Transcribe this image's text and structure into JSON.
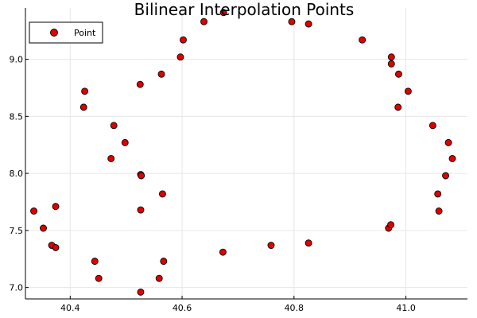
{
  "chart_data": {
    "type": "scatter",
    "title": "Bilinear Interpolation Points",
    "xlabel": "",
    "ylabel": "",
    "xlim": [
      40.32,
      41.11
    ],
    "ylim": [
      6.9,
      9.45
    ],
    "xticks": [
      40.4,
      40.6,
      40.8,
      41.0
    ],
    "xtick_labels": [
      "40.4",
      "40.6",
      "40.8",
      "41.0"
    ],
    "yticks": [
      7.0,
      7.5,
      8.0,
      8.5,
      9.0
    ],
    "ytick_labels": [
      "7.0",
      "7.5",
      "8.0",
      "8.5",
      "9.0"
    ],
    "grid": true,
    "legend": {
      "position": "top-left"
    },
    "series": [
      {
        "name": "Point",
        "color": "#e00000",
        "marker": "circle",
        "points": [
          [
            40.335,
            7.67
          ],
          [
            40.352,
            7.52
          ],
          [
            40.367,
            7.37
          ],
          [
            40.374,
            7.35
          ],
          [
            40.374,
            7.71
          ],
          [
            40.424,
            8.58
          ],
          [
            40.426,
            8.72
          ],
          [
            40.444,
            7.23
          ],
          [
            40.451,
            7.08
          ],
          [
            40.473,
            8.13
          ],
          [
            40.478,
            8.42
          ],
          [
            40.498,
            8.27
          ],
          [
            40.525,
            8.78
          ],
          [
            40.526,
            7.99
          ],
          [
            40.527,
            7.98
          ],
          [
            40.526,
            7.68
          ],
          [
            40.526,
            6.96
          ],
          [
            40.559,
            7.08
          ],
          [
            40.563,
            8.87
          ],
          [
            40.565,
            7.82
          ],
          [
            40.567,
            7.23
          ],
          [
            40.597,
            9.02
          ],
          [
            40.602,
            9.17
          ],
          [
            40.639,
            9.33
          ],
          [
            40.673,
            7.31
          ],
          [
            40.674,
            9.41
          ],
          [
            40.759,
            7.37
          ],
          [
            40.796,
            9.33
          ],
          [
            40.826,
            9.31
          ],
          [
            40.826,
            7.39
          ],
          [
            40.922,
            9.17
          ],
          [
            40.969,
            7.52
          ],
          [
            40.973,
            7.55
          ],
          [
            40.974,
            8.96
          ],
          [
            40.974,
            9.02
          ],
          [
            40.986,
            8.58
          ],
          [
            40.987,
            8.87
          ],
          [
            41.004,
            8.72
          ],
          [
            41.048,
            8.42
          ],
          [
            41.057,
            7.82
          ],
          [
            41.059,
            7.67
          ],
          [
            41.071,
            7.98
          ],
          [
            41.076,
            8.27
          ],
          [
            41.083,
            8.13
          ]
        ]
      }
    ]
  }
}
